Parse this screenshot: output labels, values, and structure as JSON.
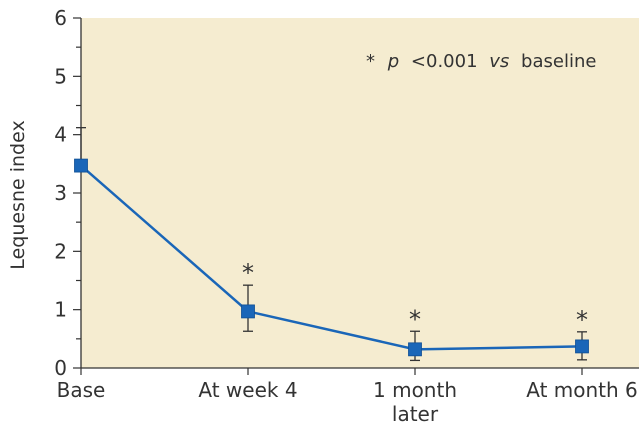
{
  "chart_data": {
    "type": "line",
    "categories": [
      "Base",
      "At week 4",
      "1 month later",
      "At month 6"
    ],
    "category_lines": [
      [
        "Base"
      ],
      [
        "At week 4"
      ],
      [
        "1 month",
        "later"
      ],
      [
        "At month 6"
      ]
    ],
    "series": [
      {
        "values": [
          3.47,
          0.97,
          0.32,
          0.37
        ],
        "error_upper": [
          4.12,
          1.42,
          0.63,
          0.62
        ],
        "error_lower": [
          3.47,
          0.63,
          0.13,
          0.14
        ],
        "significant": [
          false,
          true,
          true,
          true
        ],
        "color": "#1a66b8"
      }
    ],
    "ylabel": "Lequesne index",
    "xlabel": "",
    "ylim": [
      0,
      6
    ],
    "yticks": [
      "0",
      "1",
      "2",
      "3",
      "4",
      "5",
      "6"
    ],
    "significance_marker": "*",
    "annotation": {
      "star": "*",
      "p_symbol": "p",
      "condition": "<0.001",
      "vs_word": "vs",
      "tail": "baseline"
    },
    "plot_background": "#f5ecd0",
    "axis_color": "#333333",
    "grid": false,
    "legend": "none"
  }
}
